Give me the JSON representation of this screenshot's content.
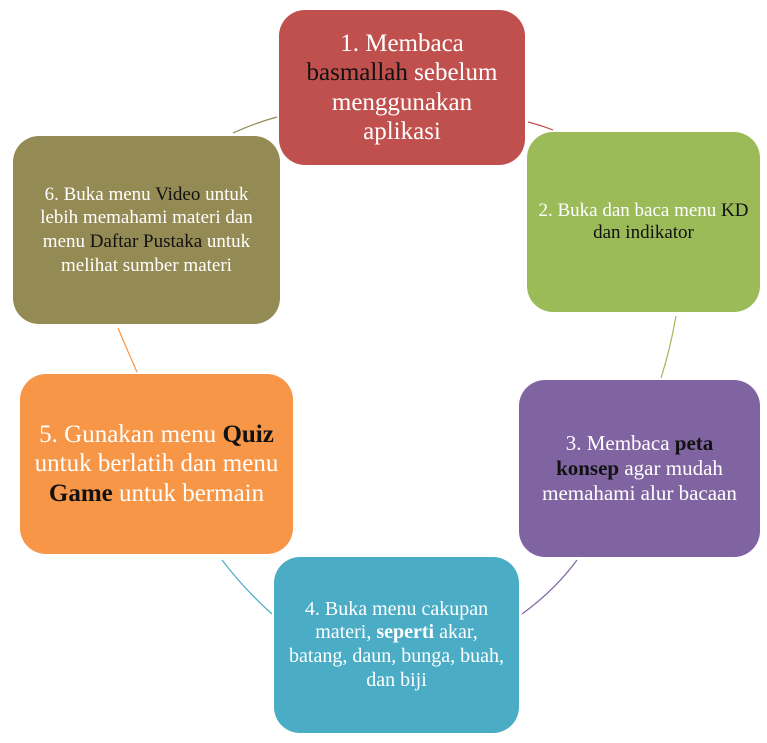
{
  "diagram": {
    "type": "cycle",
    "colors": {
      "step1": "#C0504D",
      "step2": "#9BBB59",
      "step3": "#8064A2",
      "step4": "#4BACC6",
      "step5": "#F79646",
      "step6": "#948A54"
    },
    "steps": [
      {
        "a": "1. Membaca ",
        "b": "basmallah",
        "c": " sebelum menggunakan aplikasi"
      },
      {
        "a": "2. Buka dan baca menu ",
        "b": "KD dan indikator"
      },
      {
        "a": "3. Membaca ",
        "b": "peta konsep",
        "c": " agar mudah memahami alur bacaan"
      },
      {
        "a": "4. Buka menu cakupan materi, ",
        "b": "seperti",
        "c": " akar, batang, daun, bunga, buah, dan biji"
      },
      {
        "a": "5. Gunakan menu ",
        "b": "Quiz",
        "c": " untuk berlatih dan menu ",
        "d": "Game",
        "e": " untuk bermain"
      },
      {
        "a": "6. Buka menu ",
        "b": "Video",
        "c": " untuk lebih memahami materi dan menu ",
        "d": "Daftar Pustaka",
        "e": " untuk melihat sumber materi"
      }
    ]
  }
}
